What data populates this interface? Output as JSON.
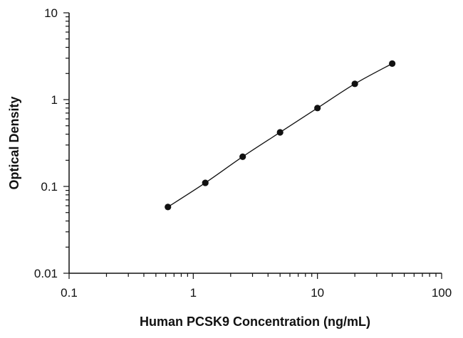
{
  "chart_data": {
    "type": "scatter",
    "title": "",
    "xlabel": "Human PCSK9 Concentration (ng/mL)",
    "ylabel": "Optical Density",
    "x_scale": "log",
    "y_scale": "log",
    "xlim": [
      0.1,
      100
    ],
    "ylim": [
      0.01,
      10
    ],
    "x_ticks": [
      0.1,
      1,
      10,
      100
    ],
    "x_tick_labels": [
      "0.1",
      "1",
      "10",
      "100"
    ],
    "y_ticks": [
      0.01,
      0.1,
      1,
      10
    ],
    "y_tick_labels": [
      "0.01",
      "0.1",
      "1",
      "10"
    ],
    "grid": false,
    "legend": "none",
    "marker_color": "#111111",
    "line_color": "#111111",
    "series": [
      {
        "x": [
          0.625,
          1.25,
          2.5,
          5,
          10,
          20,
          40
        ],
        "y": [
          0.058,
          0.11,
          0.22,
          0.42,
          0.8,
          1.52,
          2.6
        ],
        "fit_curve": true
      }
    ]
  }
}
